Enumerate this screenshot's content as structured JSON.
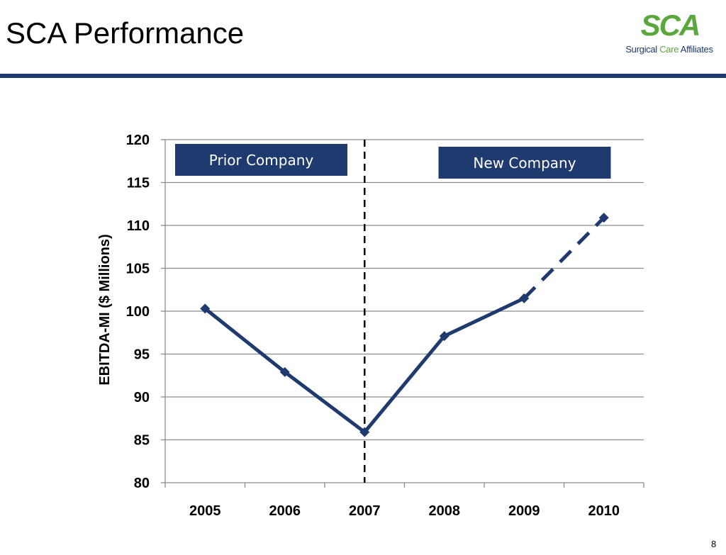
{
  "slide": {
    "title": "SCA Performance",
    "page_number": "8",
    "logo": {
      "mark": "SCA",
      "subtitle_part1": "Surgical ",
      "subtitle_part2": "Care",
      "subtitle_part3": " Affiliates"
    }
  },
  "colors": {
    "series": "#1f3a6e",
    "header_rule": "#1f3a6e",
    "phase_box": "#1f3a6e",
    "grid": "#8c8c8c",
    "divider": "#000000",
    "logo_green": "#5aa83c"
  },
  "chart_data": {
    "type": "line",
    "title": "",
    "xlabel": "",
    "ylabel": "EBITDA-MI ($ Millions)",
    "categories": [
      "2005",
      "2006",
      "2007",
      "2008",
      "2009",
      "2010"
    ],
    "ylim": [
      80,
      120
    ],
    "yticks": [
      80,
      85,
      90,
      95,
      100,
      105,
      110,
      115,
      120
    ],
    "grid": true,
    "series": [
      {
        "values": [
          100.3,
          92.9,
          85.9,
          97.1,
          101.5,
          110.9
        ],
        "dashed_from_index": 4
      }
    ],
    "divider_at": "2007",
    "phase_labels": [
      {
        "text": "Prior Company",
        "position": "left"
      },
      {
        "text": "New Company",
        "position": "right"
      }
    ]
  }
}
